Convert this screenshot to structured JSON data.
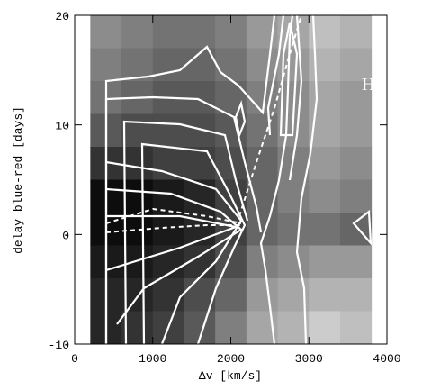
{
  "chart_data": {
    "type": "heatmap",
    "xlabel": "Δv [km/s]",
    "ylabel": "delay blue-red [days]",
    "annotation": "Hβ",
    "xlim": [
      0,
      4000
    ],
    "xticks": [
      0,
      1000,
      2000,
      3000,
      4000
    ],
    "ylim": [
      -10,
      20
    ],
    "yticks": [
      -10,
      0,
      10,
      20
    ],
    "xbins": [
      200,
      600,
      1000,
      1400,
      1800,
      2200,
      2600,
      3000,
      3400,
      3800
    ],
    "ybins": [
      20,
      17,
      14,
      11,
      8,
      5,
      2,
      -1,
      -4,
      -7,
      -10
    ],
    "z": [
      [
        55,
        50,
        45,
        45,
        50,
        60,
        65,
        75,
        70
      ],
      [
        50,
        45,
        40,
        40,
        45,
        55,
        60,
        70,
        65
      ],
      [
        45,
        40,
        35,
        35,
        40,
        50,
        55,
        65,
        60
      ],
      [
        35,
        30,
        30,
        30,
        35,
        45,
        55,
        65,
        60
      ],
      [
        20,
        20,
        25,
        25,
        30,
        40,
        50,
        60,
        55
      ],
      [
        5,
        5,
        10,
        15,
        25,
        40,
        50,
        55,
        50
      ],
      [
        5,
        5,
        10,
        15,
        25,
        40,
        45,
        45,
        40
      ],
      [
        10,
        10,
        15,
        20,
        30,
        50,
        55,
        60,
        60
      ],
      [
        15,
        15,
        20,
        30,
        40,
        60,
        65,
        70,
        70
      ],
      [
        15,
        20,
        25,
        35,
        50,
        65,
        70,
        80,
        75
      ]
    ]
  }
}
